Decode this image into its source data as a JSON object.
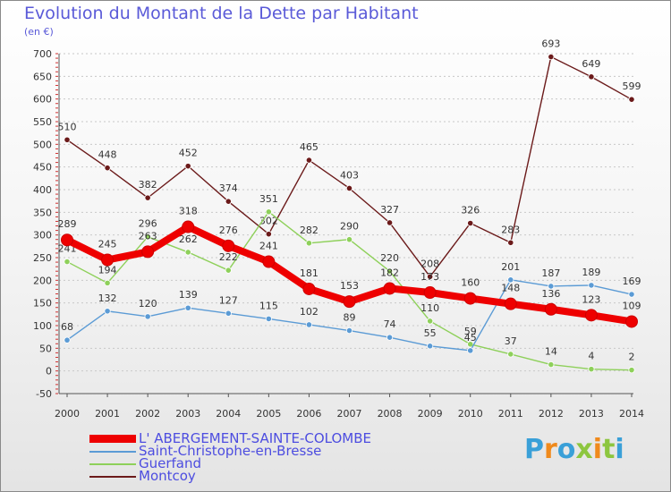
{
  "header": {
    "title": "Evolution du Montant de la Dette par Habitant",
    "subtitle": "(en €)"
  },
  "brand": {
    "logo_text": "Proxiti"
  },
  "chart_data": {
    "type": "line",
    "title": "Evolution du Montant de la Dette par Habitant",
    "ylabel": "(en €)",
    "xlabel": "",
    "ylim": [
      -50,
      700
    ],
    "y_ticks": [
      -50,
      0,
      50,
      100,
      150,
      200,
      250,
      300,
      350,
      400,
      450,
      500,
      550,
      600,
      650,
      700
    ],
    "x": [
      "2000",
      "2001",
      "2002",
      "2003",
      "2004",
      "2005",
      "2006",
      "2007",
      "2008",
      "2009",
      "2010",
      "2011",
      "2012",
      "2013",
      "2014"
    ],
    "grid": "horizontal",
    "legend_position": "bottom-left",
    "series": [
      {
        "name": "Montcoy",
        "color": "#6b1a1a",
        "values": [
          510,
          448,
          382,
          452,
          374,
          302,
          465,
          403,
          327,
          208,
          326,
          283,
          693,
          649,
          599
        ]
      },
      {
        "name": "Guerfand",
        "color": "#8ed05a",
        "values": [
          241,
          194,
          296,
          262,
          222,
          351,
          282,
          290,
          220,
          110,
          59,
          37,
          14,
          4,
          2
        ]
      },
      {
        "name": "Saint-Christophe-en-Bresse",
        "color": "#5b9bd5",
        "values": [
          68,
          132,
          120,
          139,
          127,
          115,
          102,
          89,
          74,
          55,
          45,
          201,
          187,
          189,
          169
        ]
      },
      {
        "name": "L' ABERGEMENT-SAINTE-COLOMBE",
        "color": "#ee0000",
        "values": [
          289,
          245,
          263,
          318,
          276,
          241,
          181,
          153,
          182,
          173,
          160,
          148,
          136,
          123,
          109
        ]
      }
    ]
  },
  "legend": [
    {
      "label": "L' ABERGEMENT-SAINTE-COLOMBE",
      "color": "#ee0000",
      "thick": true
    },
    {
      "label": "Saint-Christophe-en-Bresse",
      "color": "#5b9bd5",
      "thick": false
    },
    {
      "label": "Guerfand",
      "color": "#8ed05a",
      "thick": false
    },
    {
      "label": "Montcoy",
      "color": "#6b1a1a",
      "thick": false
    }
  ]
}
